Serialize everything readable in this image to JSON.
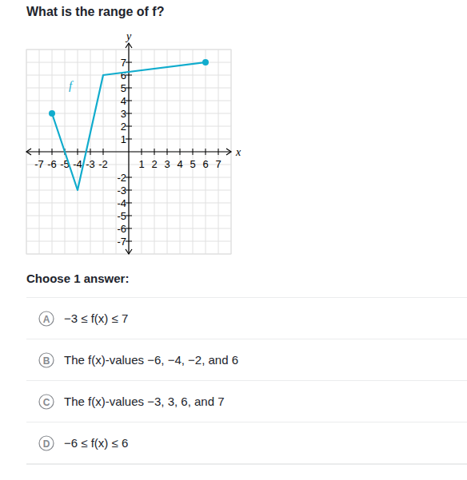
{
  "question": "What is the range of f?",
  "chart_data": {
    "type": "line",
    "x": [
      -6,
      -4,
      -2,
      6
    ],
    "series": [
      {
        "name": "f",
        "color": "#11accd",
        "values": [
          3,
          -3,
          6,
          7
        ],
        "marker": "endpoints"
      }
    ],
    "x_label": "x",
    "y_label": "y",
    "xlim": [
      -8,
      8
    ],
    "ylim": [
      -8,
      8
    ],
    "xticks": [
      -7,
      -6,
      -5,
      -4,
      -3,
      -2,
      1,
      2,
      3,
      4,
      5,
      6,
      7
    ],
    "yticks": [
      -7,
      -6,
      -5,
      -4,
      -3,
      -2,
      1,
      2,
      3,
      4,
      5,
      6,
      7
    ],
    "grid": true
  },
  "prompt": "Choose 1 answer:",
  "choices": [
    {
      "letter": "A",
      "text": "−3 ≤ f(x) ≤ 7"
    },
    {
      "letter": "B",
      "text": "The f(x)-values −6, −4, −2, and 6"
    },
    {
      "letter": "C",
      "text": "The f(x)-values −3, 3, 6, and 7"
    },
    {
      "letter": "D",
      "text": "−6 ≤ f(x) ≤ 6"
    }
  ]
}
